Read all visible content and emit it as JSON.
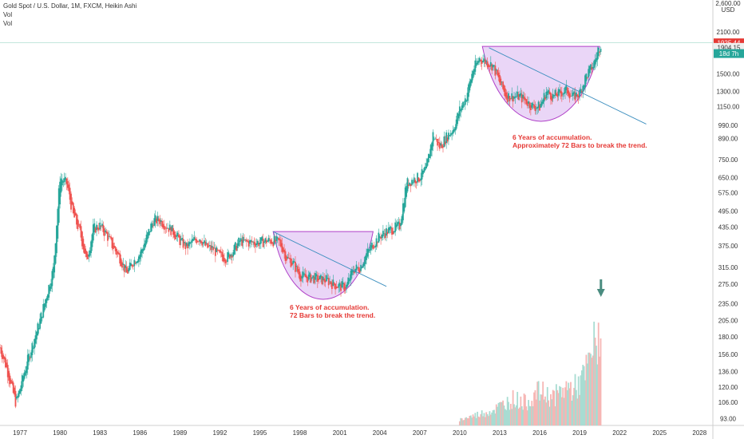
{
  "header": {
    "title": "Gold Spot / U.S. Dollar, 1M, FXCM, Heikin Ashi",
    "vol_label_1": "Vol",
    "vol_label_2": "Vol"
  },
  "price_axis": {
    "unit": "USD",
    "top_label": "2,600.00",
    "ticks": [
      "2100.00",
      "1500.00",
      "1300.00",
      "1150.00",
      "990.00",
      "890.00",
      "750.00",
      "650.00",
      "575.00",
      "495.00",
      "435.00",
      "375.00",
      "315.00",
      "275.00",
      "235.00",
      "205.00",
      "180.00",
      "156.00",
      "136.00",
      "120.00",
      "106.00",
      "93.00"
    ]
  },
  "price_badges": [
    {
      "label": "1925.44",
      "color": "#e53935"
    },
    {
      "label": "1904.15",
      "color": "#eeeeee"
    },
    {
      "label": "18d 7h",
      "color": "#26a69a"
    }
  ],
  "time_axis": {
    "ticks": [
      "1977",
      "1980",
      "1983",
      "1986",
      "1989",
      "1992",
      "1995",
      "1998",
      "2001",
      "2004",
      "2007",
      "2010",
      "2013",
      "2016",
      "2019",
      "2022",
      "2025",
      "2028"
    ]
  },
  "annotations": [
    {
      "line1": "6 Years of accumulation.",
      "line2": "72 Bars to break the trend."
    },
    {
      "line1": "6 Years of accumulation.",
      "line2": "Approximately 72 Bars to break the trend."
    }
  ],
  "colors": {
    "up": "#26a69a",
    "down": "#ef5350",
    "cup_fill": "#d8b4f0",
    "cup_stroke": "#b040c8",
    "trendline": "#3d8fbf",
    "arrow": "#4a8c80",
    "annotation": "#e53935"
  },
  "chart_data": {
    "type": "candlestick",
    "title": "Gold Spot / U.S. Dollar, 1M, FXCM, Heikin Ashi",
    "y_scale": "log",
    "price_series": {
      "x": [
        1975.5,
        1976,
        1976.7,
        1977.5,
        1978.5,
        1979.5,
        1980,
        1980.5,
        1981,
        1981.5,
        1982,
        1982.5,
        1983,
        1983.5,
        1984,
        1984.5,
        1985,
        1985.5,
        1986,
        1986.5,
        1987,
        1987.5,
        1988,
        1988.5,
        1989,
        1989.5,
        1990,
        1990.5,
        1991,
        1991.5,
        1992,
        1992.5,
        1993,
        1993.5,
        1994,
        1994.5,
        1995,
        1995.5,
        1996,
        1996.5,
        1997,
        1997.5,
        1998,
        1998.5,
        1999,
        1999.5,
        2000,
        2000.5,
        2001,
        2001.5,
        2002,
        2002.5,
        2003,
        2003.5,
        2004,
        2004.5,
        2005,
        2005.5,
        2006,
        2006.5,
        2007,
        2007.5,
        2008,
        2008.5,
        2009,
        2009.5,
        2010,
        2010.5,
        2011,
        2011.5,
        2012,
        2012.5,
        2013,
        2013.5,
        2014,
        2014.5,
        2015,
        2015.5,
        2016,
        2016.5,
        2017,
        2017.5,
        2018,
        2018.5,
        2019,
        2019.5,
        2020,
        2020.3,
        2020.6
      ],
      "close": [
        165,
        140,
        105,
        145,
        205,
        310,
        650,
        620,
        480,
        420,
        330,
        430,
        440,
        410,
        370,
        340,
        300,
        330,
        350,
        400,
        460,
        460,
        440,
        420,
        390,
        370,
        390,
        400,
        370,
        365,
        345,
        340,
        360,
        390,
        385,
        385,
        385,
        390,
        390,
        385,
        340,
        325,
        295,
        290,
        290,
        285,
        285,
        275,
        270,
        270,
        310,
        315,
        350,
        380,
        405,
        420,
        430,
        440,
        620,
        640,
        650,
        700,
        920,
        830,
        900,
        960,
        1120,
        1250,
        1550,
        1700,
        1650,
        1600,
        1400,
        1250,
        1250,
        1250,
        1200,
        1150,
        1150,
        1300,
        1250,
        1280,
        1320,
        1240,
        1280,
        1480,
        1600,
        1750,
        1925
      ]
    },
    "volume_series": {
      "x": [
        2010,
        2010.5,
        2011,
        2011.5,
        2012,
        2012.5,
        2013,
        2013.5,
        2014,
        2014.5,
        2015,
        2015.5,
        2016,
        2016.5,
        2017,
        2017.5,
        2018,
        2018.5,
        2019,
        2019.5,
        2020,
        2020.3,
        2020.6
      ],
      "values": [
        3,
        4,
        5,
        6,
        7,
        8,
        10,
        12,
        14,
        13,
        12,
        15,
        18,
        16,
        15,
        17,
        20,
        19,
        22,
        28,
        40,
        45,
        52
      ]
    },
    "cup_patterns": [
      {
        "start_x": 1996,
        "end_x": 2003.5,
        "rim_price": 420,
        "bottom_price": 245
      },
      {
        "start_x": 2011.7,
        "end_x": 2020.5,
        "rim_price": 1870,
        "bottom_price": 1030
      }
    ],
    "trendlines": [
      {
        "x1": 1996,
        "y1": 420,
        "x2": 2004.5,
        "y2": 270
      },
      {
        "x1": 2012.2,
        "y1": 1850,
        "x2": 2024,
        "y2": 1000
      }
    ],
    "xlim": [
      1975.5,
      2029
    ],
    "ylim": [
      88,
      2650
    ]
  }
}
